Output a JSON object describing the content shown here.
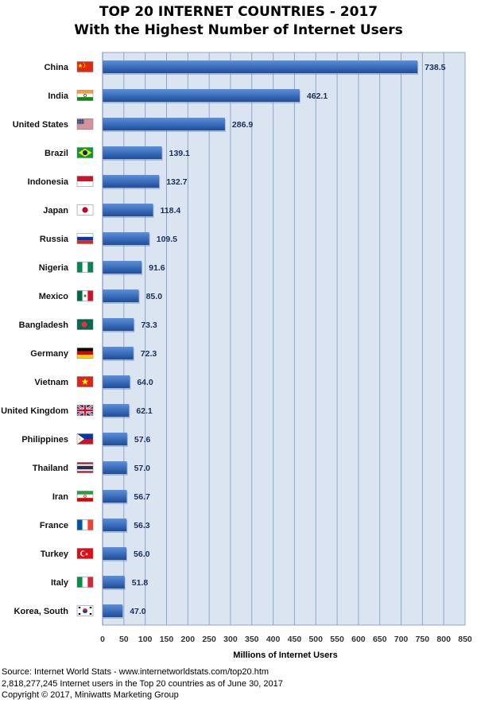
{
  "colors": {
    "plot_background": "#dbe5f1",
    "gridline": "#8fa6c9",
    "bar_top": "#5b8fdc",
    "bar_bottom": "#1f4e98",
    "bar_shadow": "#7f97bd"
  },
  "chart_data": {
    "type": "bar",
    "orientation": "horizontal",
    "title": "TOP 20 INTERNET COUNTRIES  - 2017",
    "subtitle": "With the Highest Number of Internet Users",
    "xlabel": "Millions of Internet Users",
    "ylabel": "",
    "xlim": [
      0,
      850
    ],
    "xticks": [
      0,
      50,
      100,
      150,
      200,
      250,
      300,
      350,
      400,
      450,
      500,
      550,
      600,
      650,
      700,
      750,
      800,
      850
    ],
    "grid": true,
    "legend": "none",
    "categories": [
      "China",
      "India",
      "United States",
      "Brazil",
      "Indonesia",
      "Japan",
      "Russia",
      "Nigeria",
      "Mexico",
      "Bangladesh",
      "Germany",
      "Vietnam",
      "United Kingdom",
      "Philippines",
      "Thailand",
      "Iran",
      "France",
      "Turkey",
      "Italy",
      "Korea, South"
    ],
    "flags": [
      "china-flag-icon",
      "india-flag-icon",
      "usa-flag-icon",
      "brazil-flag-icon",
      "indonesia-flag-icon",
      "japan-flag-icon",
      "russia-flag-icon",
      "nigeria-flag-icon",
      "mexico-flag-icon",
      "bangladesh-flag-icon",
      "germany-flag-icon",
      "vietnam-flag-icon",
      "uk-flag-icon",
      "philippines-flag-icon",
      "thailand-flag-icon",
      "iran-flag-icon",
      "france-flag-icon",
      "turkey-flag-icon",
      "italy-flag-icon",
      "korea-flag-icon"
    ],
    "values": [
      738.5,
      462.1,
      286.9,
      139.1,
      132.7,
      118.4,
      109.5,
      91.6,
      85.0,
      73.3,
      72.3,
      64.0,
      62.1,
      57.6,
      57.0,
      56.7,
      56.3,
      56.0,
      51.8,
      47.0
    ],
    "value_labels": [
      "738.5",
      "462.1",
      "286.9",
      "139.1",
      "132.7",
      "118.4",
      "109.5",
      "91.6",
      "85.0",
      "73.3",
      "72.3",
      "64.0",
      "62.1",
      "57.6",
      "57.0",
      "56.7",
      "56.3",
      "56.0",
      "51.8",
      "47.0"
    ]
  },
  "footer": {
    "source": "Source: Internet World Stats  -  www.internetworldstats.com/top20.htm",
    "summary": "2,818,277,245 Internet users in the Top 20 countries as of June 30, 2017",
    "copyright": "Copyright © 2017, Miniwatts Marketing Group"
  }
}
